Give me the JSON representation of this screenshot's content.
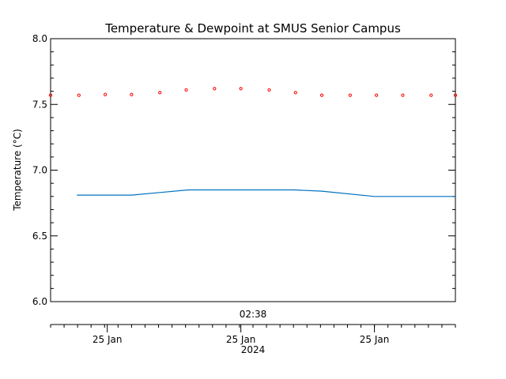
{
  "chart_data": {
    "type": "line",
    "title": "Temperature & Dewpoint at SMUS Senior Campus",
    "ylabel": "Temperature (°C)",
    "ylim": [
      6.0,
      8.0
    ],
    "y_ticks": [
      "6.0",
      "6.5",
      "7.0",
      "7.5",
      "8.0"
    ],
    "x_range": [
      0,
      1
    ],
    "x_center_label": "02:38",
    "x_tick_labels": [
      "25 Jan",
      "25 Jan",
      "25 Jan"
    ],
    "x_tick_positions": [
      0.14,
      0.47,
      0.8
    ],
    "x_year_label": "2024",
    "series": [
      {
        "color": "#ff0000",
        "style": "markers",
        "x": [
          0.0,
          0.07,
          0.135,
          0.2,
          0.27,
          0.335,
          0.405,
          0.47,
          0.54,
          0.605,
          0.67,
          0.74,
          0.805,
          0.87,
          0.94,
          1.0
        ],
        "y": [
          7.57,
          7.57,
          7.575,
          7.575,
          7.59,
          7.61,
          7.62,
          7.62,
          7.61,
          7.59,
          7.57,
          7.57,
          7.57,
          7.57,
          7.57,
          7.57
        ]
      },
      {
        "color": "#0070c0",
        "style": "line",
        "x": [
          0.065,
          0.2,
          0.27,
          0.34,
          0.6,
          0.67,
          0.8,
          1.0
        ],
        "y": [
          6.81,
          6.81,
          6.83,
          6.85,
          6.85,
          6.84,
          6.8,
          6.8
        ]
      }
    ]
  }
}
